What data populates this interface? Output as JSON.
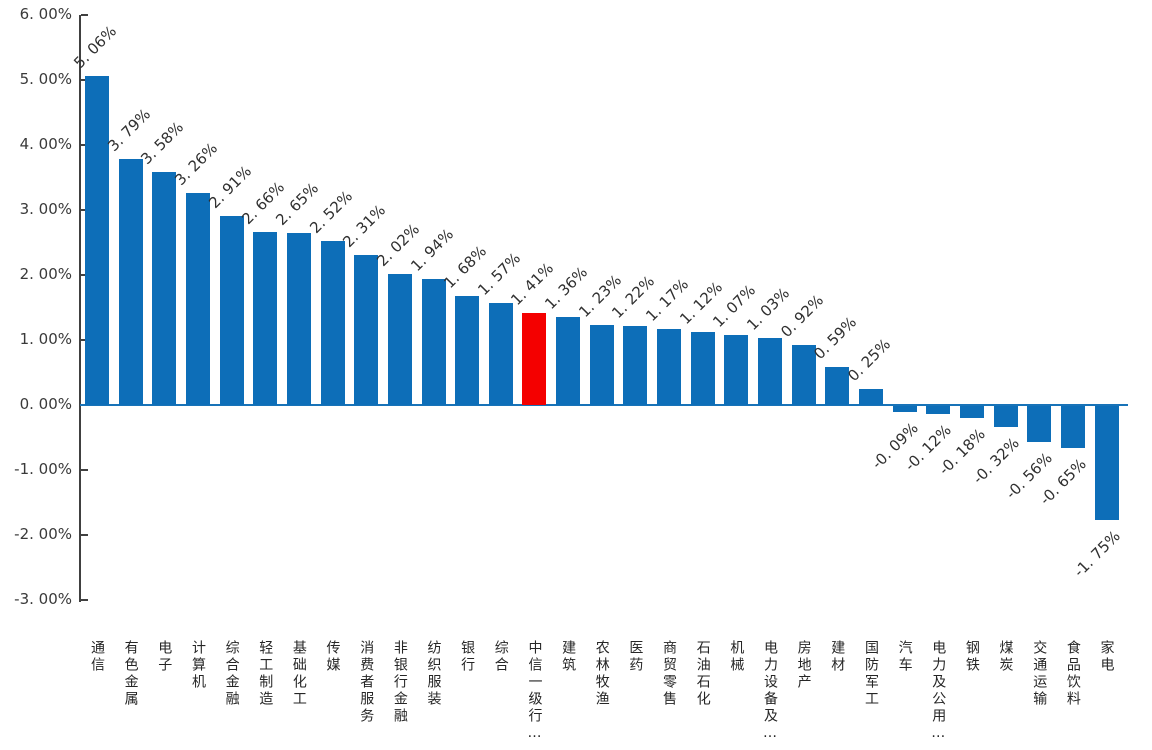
{
  "chart_data": {
    "type": "bar",
    "title": "",
    "xlabel": "",
    "ylabel": "",
    "grid": false,
    "legend": false,
    "categories": [
      "通信",
      "有色金属",
      "电子",
      "计算机",
      "综合金融",
      "轻工制造",
      "基础化工",
      "传媒",
      "消费者服务",
      "非银行金融",
      "纺织服装",
      "银行",
      "综合",
      "中信一级行…",
      "建筑",
      "农林牧渔",
      "医药",
      "商贸零售",
      "石油石化",
      "机械",
      "电力设备及…",
      "房地产",
      "建材",
      "国防军工",
      "汽车",
      "电力及公用…",
      "钢铁",
      "煤炭",
      "交通运输",
      "食品饮料",
      "家电"
    ],
    "values": [
      5.06,
      3.79,
      3.58,
      3.26,
      2.91,
      2.66,
      2.65,
      2.52,
      2.31,
      2.02,
      1.94,
      1.68,
      1.57,
      1.41,
      1.36,
      1.23,
      1.22,
      1.17,
      1.12,
      1.07,
      1.03,
      0.92,
      0.59,
      0.25,
      -0.09,
      -0.12,
      -0.18,
      -0.32,
      -0.56,
      -0.65,
      -1.75
    ],
    "value_labels": [
      "5. 06%",
      "3. 79%",
      "3. 58%",
      "3. 26%",
      "2. 91%",
      "2. 66%",
      "2. 65%",
      "2. 52%",
      "2. 31%",
      "2. 02%",
      "1. 94%",
      "1. 68%",
      "1. 57%",
      "1. 41%",
      "1. 36%",
      "1. 23%",
      "1. 22%",
      "1. 17%",
      "1. 12%",
      "1. 07%",
      "1. 03%",
      "0. 92%",
      "0. 59%",
      "0. 25%",
      "-0. 09%",
      "-0. 12%",
      "-0. 18%",
      "-0. 32%",
      "-0. 56%",
      "-0. 65%",
      "-1. 75%"
    ],
    "highlight_index": 13,
    "y_axis": {
      "max": 6,
      "min": -3,
      "tick_values": [
        6,
        5,
        4,
        3,
        2,
        1,
        0,
        -1,
        -2,
        -3
      ],
      "tick_labels": [
        "6. 00%",
        "5. 00%",
        "4. 00%",
        "3. 00%",
        "2. 00%",
        "1. 00%",
        "0. 00%",
        "-1. 00%",
        "-2. 00%",
        "-3. 00%"
      ]
    },
    "colors": {
      "bar": "#0D6EB8",
      "highlight": "#F40000",
      "axis": "#404040",
      "text": "#303030",
      "baseline": "#1873B8"
    }
  }
}
